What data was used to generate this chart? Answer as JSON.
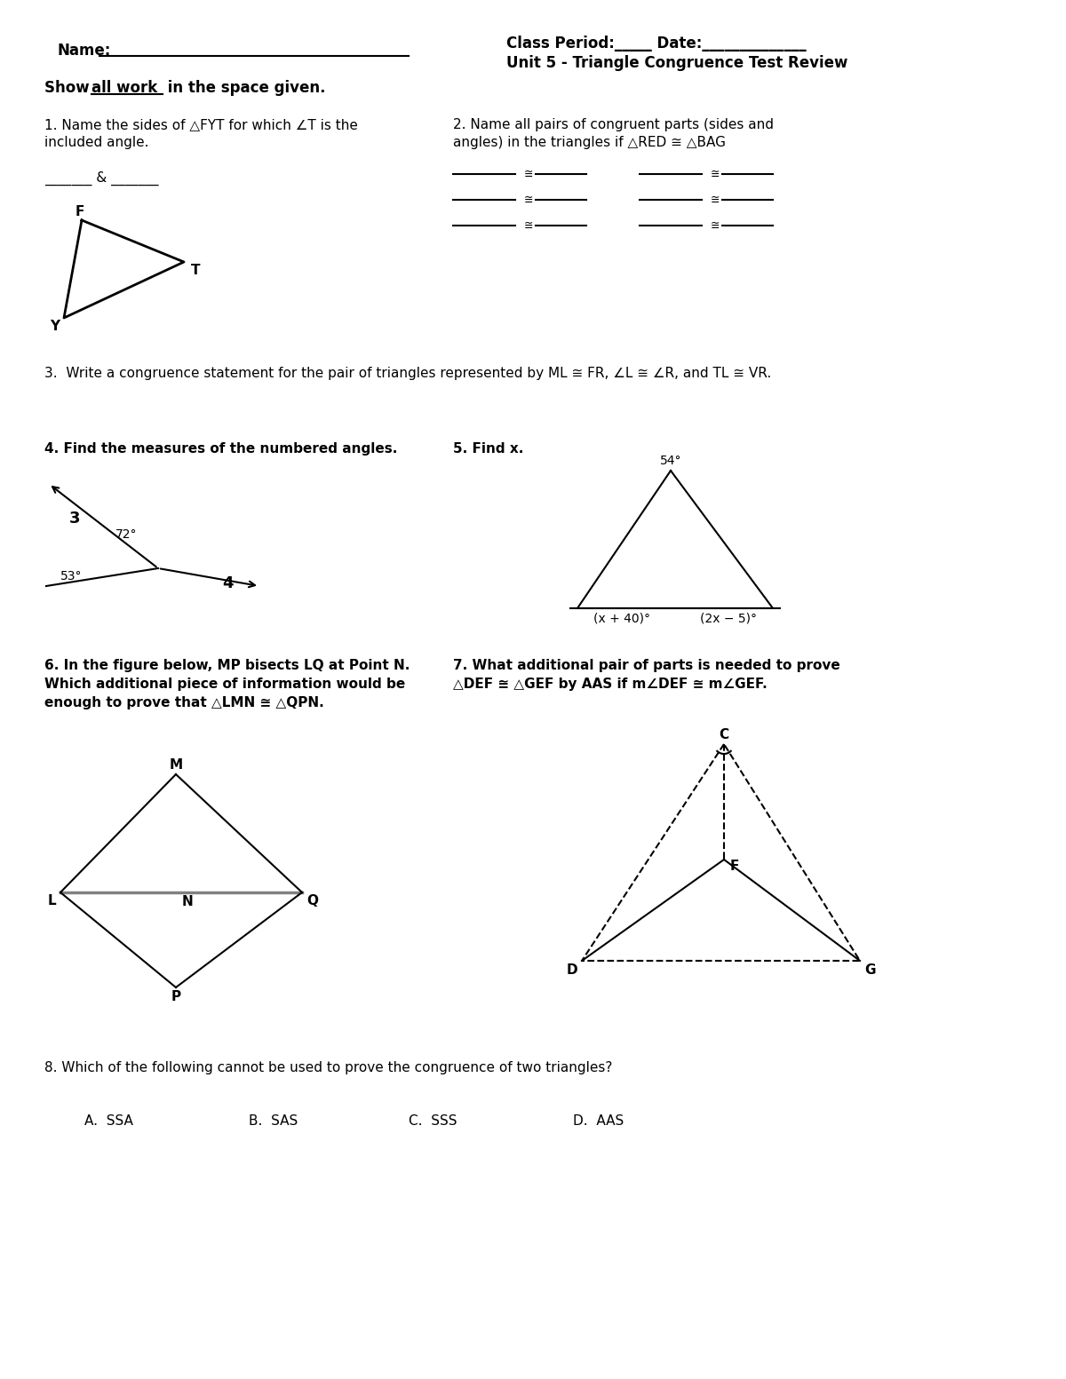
{
  "bg_color": "#ffffff",
  "text_color": "#000000",
  "header_name": "Name:",
  "header_class": "Class Period:_____ Date:______________",
  "header_unit": "Unit 5 - Triangle Congruence Test Review",
  "show_work": "Show all work in the space given.",
  "q1_line1": "1. Name the sides of △FYT for which ∠T is the",
  "q1_line2": "included angle.",
  "q1_answer": "_______ & _______",
  "q2_line1": "2. Name all pairs of congruent parts (sides and",
  "q2_line2": "angles) in the triangles if △RED ≅ △BAG",
  "q3": "3.  Write a congruence statement for the pair of triangles represented by ML ≅ FR, ∠L ≅ ∠R, and TL ≅ VR.",
  "q4": "4. Find the measures of the numbered angles.",
  "q5": "5. Find x.",
  "q6_line1": "6. In the figure below, MP bisects LQ at Point N.",
  "q6_line2": "Which additional piece of information would be",
  "q6_line3": "enough to prove that △LMN ≅ △QPN.",
  "q7_line1": "7. What additional pair of parts is needed to prove",
  "q7_line2": "△DEF ≅ △GEF by AAS if m∠DEF ≅ m∠GEF.",
  "q8": "8. Which of the following cannot be used to prove the congruence of two triangles?",
  "q8_answers": [
    "A.  SSA",
    "B.  SAS",
    "C.  SSS",
    "D.  AAS"
  ]
}
